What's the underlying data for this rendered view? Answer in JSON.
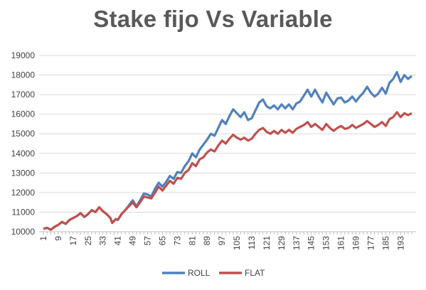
{
  "chart_data": {
    "type": "line",
    "title": "Stake fijo Vs Variable",
    "xlabel": "",
    "ylabel": "",
    "ylim": [
      10000,
      19000
    ],
    "xlim": [
      1,
      199
    ],
    "grid": true,
    "legend_position": "bottom",
    "x_tick_labels": [
      "1",
      "9",
      "17",
      "25",
      "33",
      "41",
      "49",
      "57",
      "65",
      "73",
      "81",
      "89",
      "97",
      "105",
      "113",
      "121",
      "129",
      "137",
      "145",
      "153",
      "161",
      "169",
      "177",
      "185",
      "193"
    ],
    "y_tick_labels": [
      "10000",
      "11000",
      "12000",
      "13000",
      "14000",
      "15000",
      "16000",
      "17000",
      "18000",
      "19000"
    ],
    "series": [
      {
        "name": "ROLL",
        "color": "#4f81bd",
        "points": [
          [
            1,
            10150
          ],
          [
            3,
            10200
          ],
          [
            5,
            10100
          ],
          [
            7,
            10250
          ],
          [
            9,
            10350
          ],
          [
            11,
            10500
          ],
          [
            13,
            10400
          ],
          [
            15,
            10600
          ],
          [
            17,
            10700
          ],
          [
            19,
            10800
          ],
          [
            21,
            10950
          ],
          [
            23,
            10750
          ],
          [
            25,
            10900
          ],
          [
            27,
            11100
          ],
          [
            29,
            11000
          ],
          [
            31,
            11250
          ],
          [
            33,
            11050
          ],
          [
            35,
            10900
          ],
          [
            37,
            10700
          ],
          [
            38,
            10450
          ],
          [
            40,
            10650
          ],
          [
            41,
            10600
          ],
          [
            43,
            10900
          ],
          [
            45,
            11100
          ],
          [
            47,
            11350
          ],
          [
            49,
            11600
          ],
          [
            51,
            11300
          ],
          [
            53,
            11600
          ],
          [
            55,
            11950
          ],
          [
            57,
            11900
          ],
          [
            59,
            11800
          ],
          [
            61,
            12200
          ],
          [
            63,
            12500
          ],
          [
            65,
            12300
          ],
          [
            67,
            12550
          ],
          [
            69,
            12850
          ],
          [
            71,
            12700
          ],
          [
            73,
            13050
          ],
          [
            75,
            13000
          ],
          [
            77,
            13350
          ],
          [
            79,
            13600
          ],
          [
            81,
            14000
          ],
          [
            83,
            13800
          ],
          [
            85,
            14200
          ],
          [
            87,
            14450
          ],
          [
            89,
            14700
          ],
          [
            91,
            15000
          ],
          [
            93,
            14900
          ],
          [
            95,
            15300
          ],
          [
            97,
            15700
          ],
          [
            99,
            15500
          ],
          [
            101,
            15900
          ],
          [
            103,
            16250
          ],
          [
            105,
            16050
          ],
          [
            107,
            15850
          ],
          [
            109,
            16100
          ],
          [
            111,
            15700
          ],
          [
            113,
            15800
          ],
          [
            115,
            16200
          ],
          [
            117,
            16600
          ],
          [
            119,
            16750
          ],
          [
            121,
            16400
          ],
          [
            123,
            16300
          ],
          [
            125,
            16450
          ],
          [
            127,
            16250
          ],
          [
            129,
            16500
          ],
          [
            131,
            16300
          ],
          [
            133,
            16500
          ],
          [
            135,
            16250
          ],
          [
            137,
            16550
          ],
          [
            139,
            16650
          ],
          [
            141,
            16950
          ],
          [
            143,
            17250
          ],
          [
            145,
            16900
          ],
          [
            147,
            17250
          ],
          [
            149,
            16900
          ],
          [
            151,
            16600
          ],
          [
            153,
            17100
          ],
          [
            155,
            16800
          ],
          [
            157,
            16500
          ],
          [
            159,
            16800
          ],
          [
            161,
            16850
          ],
          [
            163,
            16600
          ],
          [
            165,
            16700
          ],
          [
            167,
            16900
          ],
          [
            169,
            16650
          ],
          [
            171,
            16900
          ],
          [
            173,
            17100
          ],
          [
            175,
            17400
          ],
          [
            177,
            17100
          ],
          [
            179,
            16900
          ],
          [
            181,
            17050
          ],
          [
            183,
            17350
          ],
          [
            185,
            17050
          ],
          [
            187,
            17600
          ],
          [
            189,
            17800
          ],
          [
            191,
            18150
          ],
          [
            193,
            17650
          ],
          [
            195,
            18000
          ],
          [
            197,
            17800
          ],
          [
            199,
            17950
          ]
        ]
      },
      {
        "name": "FLAT",
        "color": "#c0504d",
        "points": [
          [
            1,
            10150
          ],
          [
            3,
            10200
          ],
          [
            5,
            10100
          ],
          [
            7,
            10250
          ],
          [
            9,
            10350
          ],
          [
            11,
            10500
          ],
          [
            13,
            10400
          ],
          [
            15,
            10600
          ],
          [
            17,
            10700
          ],
          [
            19,
            10800
          ],
          [
            21,
            10950
          ],
          [
            23,
            10750
          ],
          [
            25,
            10900
          ],
          [
            27,
            11100
          ],
          [
            29,
            11000
          ],
          [
            31,
            11250
          ],
          [
            33,
            11050
          ],
          [
            35,
            10900
          ],
          [
            37,
            10700
          ],
          [
            38,
            10450
          ],
          [
            40,
            10650
          ],
          [
            41,
            10600
          ],
          [
            43,
            10900
          ],
          [
            45,
            11100
          ],
          [
            47,
            11300
          ],
          [
            49,
            11500
          ],
          [
            51,
            11250
          ],
          [
            53,
            11500
          ],
          [
            55,
            11800
          ],
          [
            57,
            11750
          ],
          [
            59,
            11700
          ],
          [
            61,
            12000
          ],
          [
            63,
            12300
          ],
          [
            65,
            12100
          ],
          [
            67,
            12350
          ],
          [
            69,
            12600
          ],
          [
            71,
            12450
          ],
          [
            73,
            12750
          ],
          [
            75,
            12700
          ],
          [
            77,
            13000
          ],
          [
            79,
            13150
          ],
          [
            81,
            13500
          ],
          [
            83,
            13350
          ],
          [
            85,
            13700
          ],
          [
            87,
            13800
          ],
          [
            89,
            14050
          ],
          [
            91,
            14200
          ],
          [
            93,
            14100
          ],
          [
            95,
            14400
          ],
          [
            97,
            14650
          ],
          [
            99,
            14500
          ],
          [
            101,
            14750
          ],
          [
            103,
            14950
          ],
          [
            105,
            14800
          ],
          [
            107,
            14700
          ],
          [
            109,
            14800
          ],
          [
            111,
            14650
          ],
          [
            113,
            14750
          ],
          [
            115,
            15000
          ],
          [
            117,
            15200
          ],
          [
            119,
            15300
          ],
          [
            121,
            15100
          ],
          [
            123,
            15000
          ],
          [
            125,
            15150
          ],
          [
            127,
            15000
          ],
          [
            129,
            15200
          ],
          [
            131,
            15050
          ],
          [
            133,
            15200
          ],
          [
            135,
            15050
          ],
          [
            137,
            15250
          ],
          [
            139,
            15350
          ],
          [
            141,
            15450
          ],
          [
            143,
            15600
          ],
          [
            145,
            15350
          ],
          [
            147,
            15500
          ],
          [
            149,
            15350
          ],
          [
            151,
            15200
          ],
          [
            153,
            15500
          ],
          [
            155,
            15300
          ],
          [
            157,
            15150
          ],
          [
            159,
            15300
          ],
          [
            161,
            15400
          ],
          [
            163,
            15250
          ],
          [
            165,
            15300
          ],
          [
            167,
            15450
          ],
          [
            169,
            15300
          ],
          [
            171,
            15400
          ],
          [
            173,
            15500
          ],
          [
            175,
            15650
          ],
          [
            177,
            15500
          ],
          [
            179,
            15350
          ],
          [
            181,
            15450
          ],
          [
            183,
            15600
          ],
          [
            185,
            15400
          ],
          [
            187,
            15750
          ],
          [
            189,
            15850
          ],
          [
            191,
            16100
          ],
          [
            193,
            15850
          ],
          [
            195,
            16050
          ],
          [
            197,
            15950
          ],
          [
            199,
            16050
          ]
        ]
      }
    ]
  }
}
